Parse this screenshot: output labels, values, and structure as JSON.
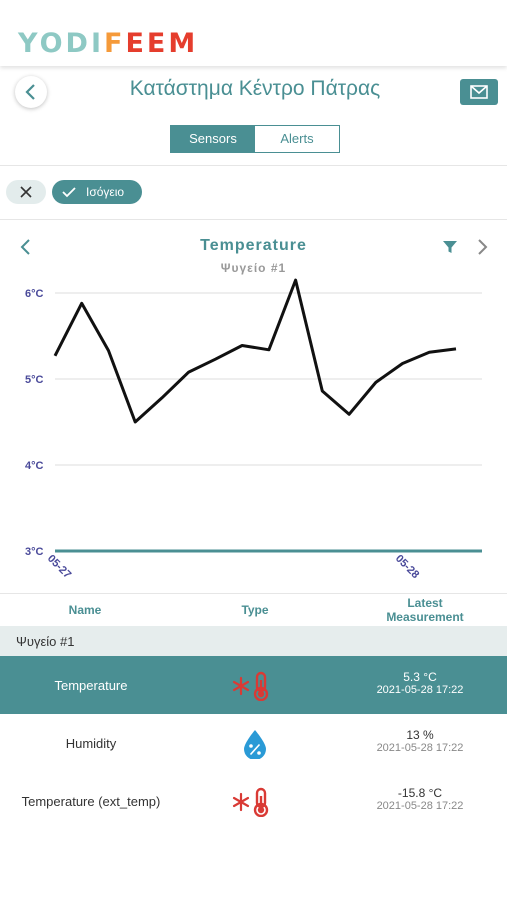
{
  "brand": {
    "logo_part1": "YODI",
    "logo_part2": "F",
    "logo_part3": "EEM"
  },
  "header": {
    "title": "Κατάστημα Κέντρο Πάτρας"
  },
  "tabs": [
    {
      "label": "Sensors",
      "active": true
    },
    {
      "label": "Alerts",
      "active": false
    }
  ],
  "filter_chip": {
    "label": "Ισόγειο"
  },
  "chart_data": {
    "type": "line",
    "title": "Temperature",
    "subtitle": "Ψυγείο #1",
    "y_ticks": [
      "6°C",
      "5°C",
      "4°C",
      "3°C"
    ],
    "x_ticks": [
      "05-27",
      "05-28"
    ],
    "ylim": [
      3,
      6
    ],
    "series": [
      {
        "values": [
          5.27,
          5.88,
          5.33,
          4.5,
          4.78,
          5.08,
          5.23,
          5.39,
          5.34,
          6.15,
          4.86,
          4.59,
          4.96,
          5.18,
          5.31,
          5.35
        ]
      }
    ],
    "colors": {
      "line": "#111111",
      "baseline": "#4a8f93",
      "grid": "#dddddd",
      "tick": "#4a4a9a"
    }
  },
  "table": {
    "headers": {
      "name": "Name",
      "type": "Type",
      "latest_line1": "Latest",
      "latest_line2": "Measurement"
    },
    "group": "Ψυγείο #1",
    "rows": [
      {
        "name": "Temperature",
        "icon": "thermometer-snowflake-icon",
        "value": "5.3 °C",
        "timestamp": "2021-05-28 17:22",
        "selected": true
      },
      {
        "name": "Humidity",
        "icon": "humidity-drop-icon",
        "value": "13 %",
        "timestamp": "2021-05-28 17:22",
        "selected": false
      },
      {
        "name": "Temperature (ext_temp)",
        "icon": "thermometer-snowflake-icon",
        "value": "-15.8 °C",
        "timestamp": "2021-05-28 17:22",
        "selected": false
      }
    ]
  },
  "colors": {
    "primary": "#4a8f93",
    "alert": "#d93a35",
    "humidity": "#2a9ad6"
  }
}
